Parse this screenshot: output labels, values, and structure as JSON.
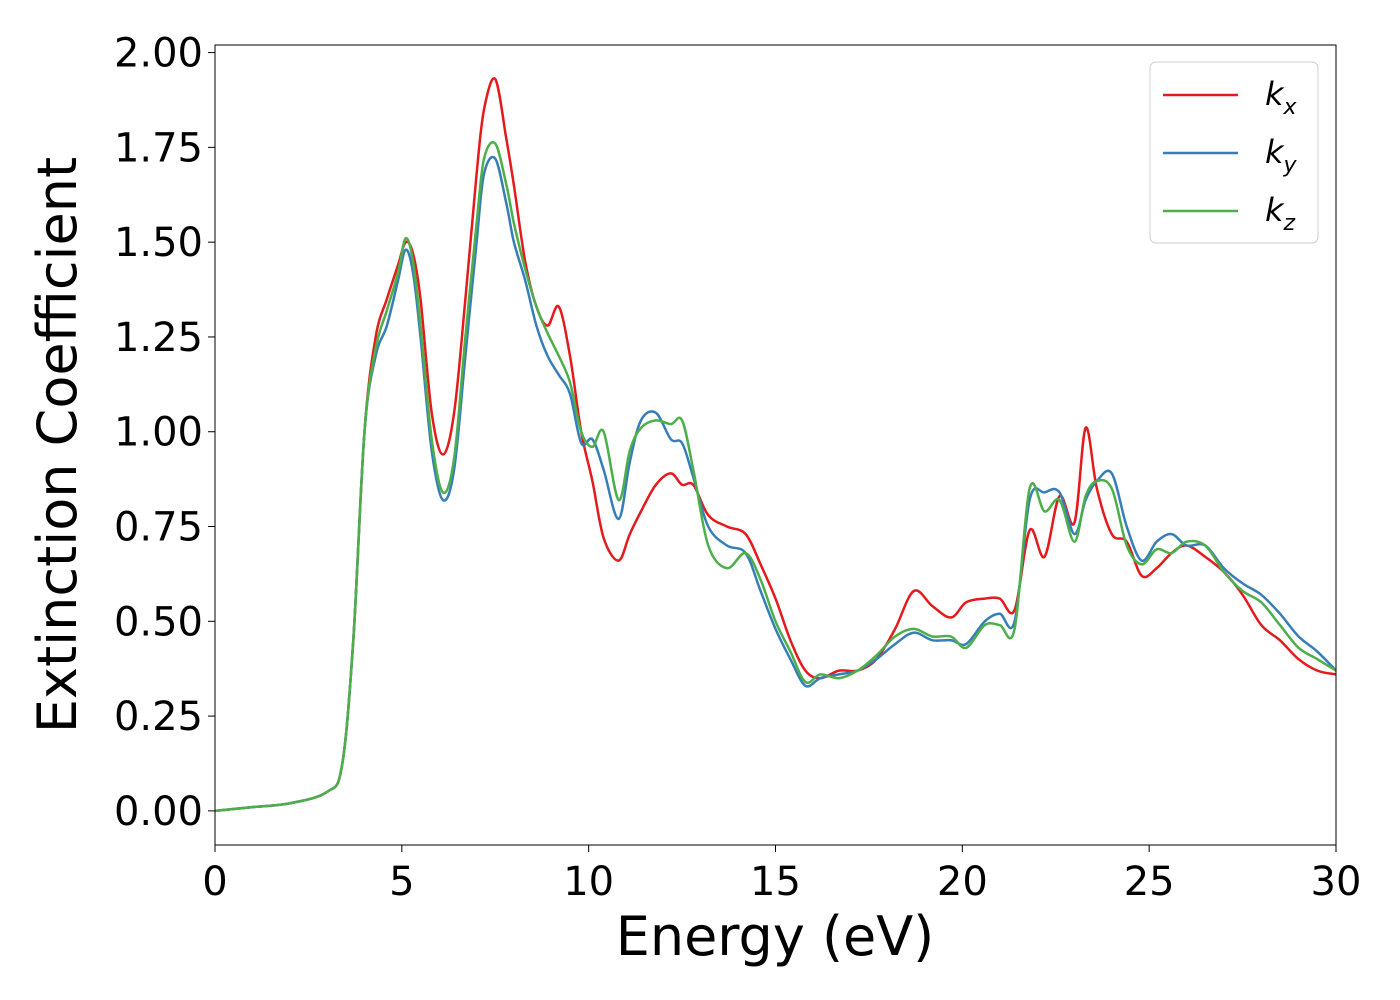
{
  "chart_data": {
    "type": "line",
    "xlabel": "Energy (eV)",
    "ylabel": "Extinction Coefficient",
    "xlim": [
      0,
      30
    ],
    "ylim": [
      -0.09,
      2.02
    ],
    "xticks": [
      0,
      5,
      10,
      15,
      20,
      25,
      30
    ],
    "xtick_labels": [
      "0",
      "5",
      "10",
      "15",
      "20",
      "25",
      "30"
    ],
    "yticks": [
      0,
      0.25,
      0.5,
      0.75,
      1.0,
      1.25,
      1.5,
      1.75,
      2.0
    ],
    "ytick_labels": [
      "0.00",
      "0.25",
      "0.50",
      "0.75",
      "1.00",
      "1.25",
      "1.50",
      "1.75",
      "2.00"
    ],
    "grid": false,
    "legend_position": "top-right",
    "series": [
      {
        "name": "k",
        "subscript": "x",
        "color": "#e41a1c",
        "x": [
          0,
          1,
          2,
          3,
          3.4,
          3.7,
          4.0,
          4.3,
          4.6,
          4.9,
          5.1,
          5.3,
          5.5,
          5.8,
          6.1,
          6.4,
          6.7,
          7.0,
          7.2,
          7.5,
          7.8,
          8.0,
          8.3,
          8.6,
          8.9,
          9.2,
          9.5,
          9.8,
          10.1,
          10.4,
          10.8,
          11.1,
          11.4,
          11.8,
          12.2,
          12.5,
          12.8,
          13.2,
          13.7,
          14.2,
          14.6,
          15.0,
          15.4,
          15.8,
          16.2,
          16.7,
          17.2,
          17.7,
          18.2,
          18.7,
          19.2,
          19.7,
          20.1,
          20.6,
          21.0,
          21.4,
          21.8,
          22.2,
          22.6,
          23.0,
          23.3,
          23.6,
          24.0,
          24.4,
          24.8,
          25.2,
          25.6,
          26.0,
          26.5,
          27.0,
          27.5,
          28.0,
          28.5,
          29.0,
          29.5,
          30.0
        ],
        "values": [
          0.0,
          0.01,
          0.02,
          0.05,
          0.12,
          0.45,
          1.0,
          1.25,
          1.35,
          1.44,
          1.5,
          1.47,
          1.35,
          1.05,
          0.94,
          1.05,
          1.35,
          1.68,
          1.85,
          1.93,
          1.77,
          1.65,
          1.45,
          1.33,
          1.28,
          1.33,
          1.2,
          1.0,
          0.87,
          0.72,
          0.66,
          0.73,
          0.79,
          0.86,
          0.89,
          0.86,
          0.86,
          0.78,
          0.75,
          0.73,
          0.65,
          0.56,
          0.45,
          0.37,
          0.35,
          0.37,
          0.37,
          0.4,
          0.48,
          0.58,
          0.54,
          0.51,
          0.55,
          0.56,
          0.56,
          0.53,
          0.74,
          0.67,
          0.83,
          0.76,
          1.01,
          0.85,
          0.73,
          0.71,
          0.62,
          0.64,
          0.68,
          0.7,
          0.67,
          0.63,
          0.57,
          0.49,
          0.45,
          0.4,
          0.37,
          0.36
        ]
      },
      {
        "name": "k",
        "subscript": "y",
        "color": "#377eb8",
        "x": [
          0,
          1,
          2,
          3,
          3.4,
          3.7,
          4.0,
          4.3,
          4.6,
          4.9,
          5.1,
          5.3,
          5.5,
          5.8,
          6.1,
          6.4,
          6.7,
          7.0,
          7.2,
          7.5,
          7.8,
          8.0,
          8.3,
          8.6,
          8.9,
          9.2,
          9.5,
          9.8,
          10.1,
          10.4,
          10.8,
          11.1,
          11.4,
          11.8,
          12.2,
          12.5,
          12.8,
          13.2,
          13.7,
          14.2,
          14.6,
          15.0,
          15.4,
          15.8,
          16.2,
          16.7,
          17.2,
          17.7,
          18.2,
          18.7,
          19.2,
          19.7,
          20.1,
          20.6,
          21.0,
          21.4,
          21.8,
          22.2,
          22.6,
          23.0,
          23.3,
          23.6,
          24.0,
          24.4,
          24.8,
          25.2,
          25.6,
          26.0,
          26.5,
          27.0,
          27.5,
          28.0,
          28.5,
          29.0,
          29.5,
          30.0
        ],
        "values": [
          0.0,
          0.01,
          0.02,
          0.05,
          0.12,
          0.45,
          1.0,
          1.2,
          1.28,
          1.4,
          1.48,
          1.42,
          1.25,
          0.95,
          0.82,
          0.9,
          1.2,
          1.5,
          1.68,
          1.72,
          1.6,
          1.5,
          1.4,
          1.28,
          1.2,
          1.15,
          1.1,
          0.97,
          0.98,
          0.9,
          0.77,
          0.92,
          1.03,
          1.05,
          0.98,
          0.97,
          0.88,
          0.75,
          0.7,
          0.68,
          0.58,
          0.48,
          0.4,
          0.33,
          0.35,
          0.36,
          0.37,
          0.4,
          0.44,
          0.47,
          0.45,
          0.45,
          0.44,
          0.5,
          0.52,
          0.5,
          0.82,
          0.84,
          0.84,
          0.73,
          0.82,
          0.87,
          0.89,
          0.75,
          0.66,
          0.71,
          0.73,
          0.7,
          0.7,
          0.64,
          0.6,
          0.57,
          0.52,
          0.46,
          0.42,
          0.37
        ]
      },
      {
        "name": "k",
        "subscript": "z",
        "color": "#4daf4a",
        "x": [
          0,
          1,
          2,
          3,
          3.4,
          3.7,
          4.0,
          4.3,
          4.6,
          4.9,
          5.1,
          5.3,
          5.5,
          5.8,
          6.1,
          6.4,
          6.7,
          7.0,
          7.2,
          7.5,
          7.8,
          8.0,
          8.3,
          8.6,
          8.9,
          9.2,
          9.5,
          9.8,
          10.1,
          10.4,
          10.8,
          11.1,
          11.4,
          11.8,
          12.2,
          12.5,
          12.8,
          13.2,
          13.7,
          14.2,
          14.6,
          15.0,
          15.4,
          15.8,
          16.2,
          16.7,
          17.2,
          17.7,
          18.2,
          18.7,
          19.2,
          19.7,
          20.1,
          20.6,
          21.0,
          21.4,
          21.8,
          22.2,
          22.6,
          23.0,
          23.3,
          23.6,
          24.0,
          24.4,
          24.8,
          25.2,
          25.6,
          26.0,
          26.5,
          27.0,
          27.5,
          28.0,
          28.5,
          29.0,
          29.5,
          30.0
        ],
        "values": [
          0.0,
          0.01,
          0.02,
          0.05,
          0.12,
          0.45,
          1.0,
          1.22,
          1.32,
          1.42,
          1.51,
          1.45,
          1.28,
          0.98,
          0.84,
          0.93,
          1.25,
          1.55,
          1.72,
          1.76,
          1.65,
          1.55,
          1.43,
          1.33,
          1.26,
          1.2,
          1.13,
          1.0,
          0.96,
          1.0,
          0.82,
          0.95,
          1.01,
          1.03,
          1.02,
          1.03,
          0.9,
          0.7,
          0.64,
          0.68,
          0.61,
          0.5,
          0.42,
          0.34,
          0.36,
          0.35,
          0.37,
          0.41,
          0.46,
          0.48,
          0.46,
          0.46,
          0.43,
          0.49,
          0.49,
          0.48,
          0.85,
          0.79,
          0.82,
          0.71,
          0.83,
          0.87,
          0.85,
          0.7,
          0.65,
          0.69,
          0.68,
          0.71,
          0.7,
          0.63,
          0.58,
          0.55,
          0.49,
          0.43,
          0.4,
          0.37
        ]
      }
    ]
  }
}
